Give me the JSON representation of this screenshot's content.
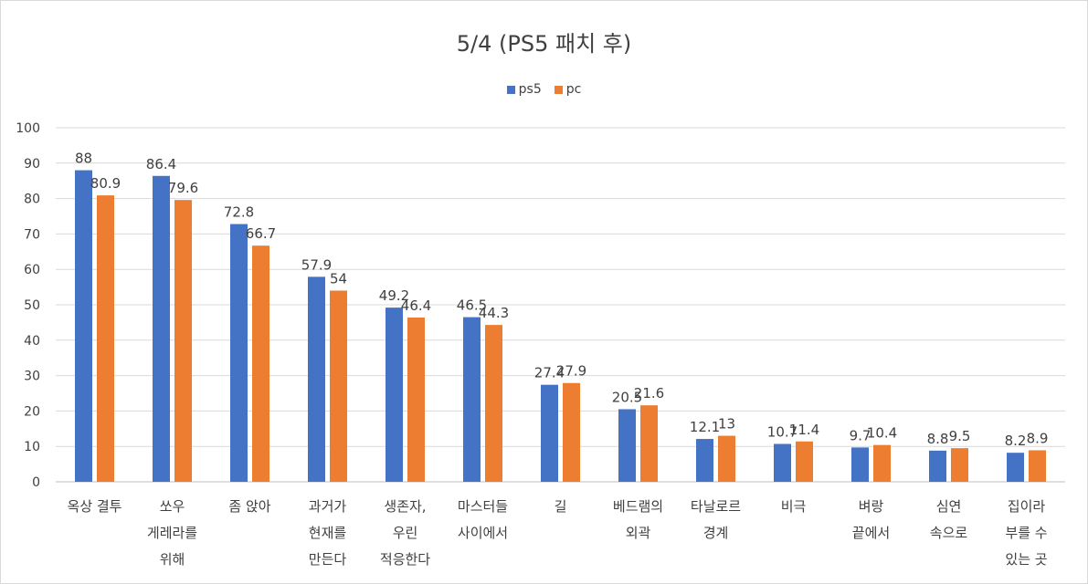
{
  "chart_data": {
    "type": "bar",
    "title": "5/4 (PS5 패치 후)",
    "xlabel": "",
    "ylabel": "",
    "ylim": [
      0,
      100
    ],
    "yticks": [
      0,
      10,
      20,
      30,
      40,
      50,
      60,
      70,
      80,
      90,
      100
    ],
    "grid": true,
    "legend_position": "top",
    "categories": [
      [
        "옥상 결투"
      ],
      [
        "쏘우",
        "게레라를",
        "위해"
      ],
      [
        "좀 앉아"
      ],
      [
        "과거가",
        "현재를",
        "만든다"
      ],
      [
        "생존자,",
        "우린",
        "적응한다"
      ],
      [
        "마스터들",
        "사이에서"
      ],
      [
        "길"
      ],
      [
        "베드램의",
        "외곽"
      ],
      [
        "타날로르",
        "경계"
      ],
      [
        "비극"
      ],
      [
        "벼랑",
        "끝에서"
      ],
      [
        "심연",
        "속으로"
      ],
      [
        "집이라",
        "부를 수",
        "있는 곳"
      ]
    ],
    "series": [
      {
        "name": "ps5",
        "color": "#4472c4",
        "values": [
          88,
          86.4,
          72.8,
          57.9,
          49.2,
          46.5,
          27.4,
          20.5,
          12.1,
          10.7,
          9.7,
          8.8,
          8.2
        ]
      },
      {
        "name": "pc",
        "color": "#ed7d31",
        "values": [
          80.9,
          79.6,
          66.7,
          54,
          46.4,
          44.3,
          27.9,
          21.6,
          13,
          11.4,
          10.4,
          9.5,
          8.9
        ]
      }
    ]
  }
}
